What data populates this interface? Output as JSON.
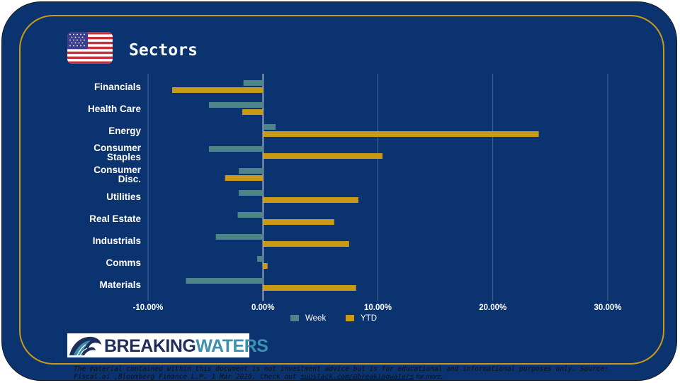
{
  "header": {
    "title": "Sectors"
  },
  "flag": {
    "icon": "us-flag-icon"
  },
  "colors": {
    "background": "#0b3370",
    "frame": "#c99a16",
    "week": "#4e8589",
    "ytd": "#c99a16"
  },
  "chart_data": {
    "type": "bar",
    "orientation": "horizontal",
    "categories": [
      "Financials",
      "Health Care",
      "Energy",
      "Consumer Staples",
      "Consumer Disc.",
      "Utilities",
      "Real Estate",
      "Industrials",
      "Comms",
      "Materials"
    ],
    "category_lines": [
      [
        "Financials"
      ],
      [
        "Health Care"
      ],
      [
        "Energy"
      ],
      [
        "Consumer",
        "Staples"
      ],
      [
        "Consumer",
        "Disc."
      ],
      [
        "Utilities"
      ],
      [
        "Real Estate"
      ],
      [
        "Industrials"
      ],
      [
        "Comms"
      ],
      [
        "Materials"
      ]
    ],
    "series": [
      {
        "name": "Week",
        "values": [
          -1.7,
          -4.7,
          1.1,
          -4.7,
          -2.1,
          -2.1,
          -2.2,
          -4.1,
          -0.5,
          -6.7
        ]
      },
      {
        "name": "YTD",
        "values": [
          -7.9,
          -1.8,
          24.0,
          10.4,
          -3.3,
          8.3,
          6.2,
          7.5,
          0.4,
          8.1
        ]
      }
    ],
    "xlim": [
      -10,
      30
    ],
    "x_ticks": [
      -10,
      0,
      10,
      20,
      30
    ],
    "x_tick_labels": [
      "-10.00%",
      "0.00%",
      "10.00%",
      "20.00%",
      "30.00%"
    ],
    "legend_position": "bottom-center",
    "grid": true
  },
  "logo": {
    "part1": "BREAKING",
    "part2": "WATERS"
  },
  "disclaimer": {
    "text": "The material contained within this document is not investment advice but is for educational and informational purposes only. Source: Fiscal.ai ,Bloomberg Finance L.P. 1 Mar 2026. Check out ",
    "link": "substack.com/@breakingwaters",
    "suffix": " for more",
    "end": "."
  }
}
